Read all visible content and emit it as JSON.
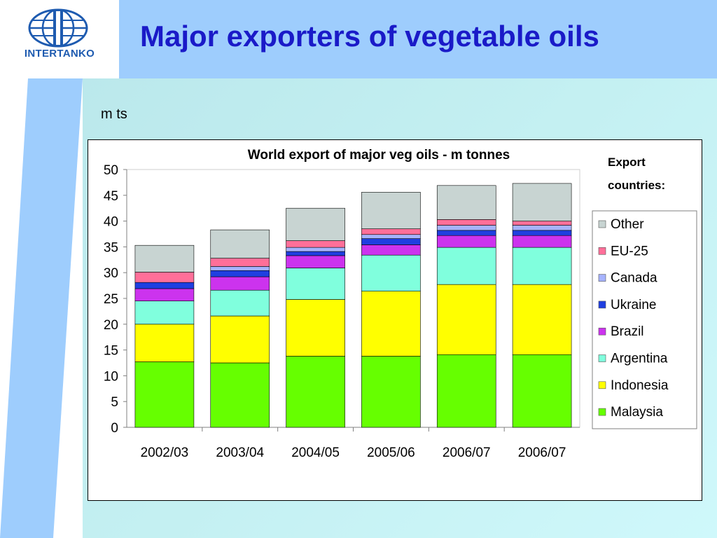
{
  "logo": {
    "text": "INTERTANKO"
  },
  "slide": {
    "title": "Major exporters of vegetable oils",
    "unit_label": "m ts"
  },
  "chart_data": {
    "type": "bar",
    "stacked": true,
    "title": "World export of major veg oils - m tonnes",
    "legend_title": "Export countries:",
    "legend_position": "right",
    "categories": [
      "2002/03",
      "2003/04",
      "2004/05",
      "2005/06",
      "2006/07",
      "2006/07"
    ],
    "ylim": [
      0,
      50
    ],
    "yticks": [
      0,
      5,
      10,
      15,
      20,
      25,
      30,
      35,
      40,
      45,
      50
    ],
    "grid": false,
    "series": [
      {
        "name": "Malaysia",
        "color": "#66ff00",
        "values": [
          12.7,
          12.5,
          13.8,
          13.8,
          14.1,
          14.1
        ]
      },
      {
        "name": "Indonesia",
        "color": "#ffff00",
        "values": [
          7.3,
          9.1,
          11.0,
          12.6,
          13.6,
          13.6
        ]
      },
      {
        "name": "Argentina",
        "color": "#80ffdd",
        "values": [
          4.5,
          5.0,
          6.1,
          7.0,
          7.2,
          7.2
        ]
      },
      {
        "name": "Brazil",
        "color": "#cc33ee",
        "values": [
          2.4,
          2.6,
          2.4,
          2.0,
          2.3,
          2.3
        ]
      },
      {
        "name": "Ukraine",
        "color": "#1f3fe0",
        "values": [
          1.2,
          1.2,
          0.8,
          1.2,
          1.0,
          1.0
        ]
      },
      {
        "name": "Canada",
        "color": "#a6b3ff",
        "values": [
          0.0,
          0.8,
          0.8,
          0.8,
          1.0,
          1.0
        ]
      },
      {
        "name": "EU-25",
        "color": "#ff6f99",
        "values": [
          2.0,
          1.6,
          1.3,
          1.1,
          1.1,
          0.8
        ]
      },
      {
        "name": "Other",
        "color": "#c8d4d2",
        "values": [
          5.2,
          5.5,
          6.3,
          7.1,
          6.6,
          7.3
        ]
      }
    ]
  }
}
